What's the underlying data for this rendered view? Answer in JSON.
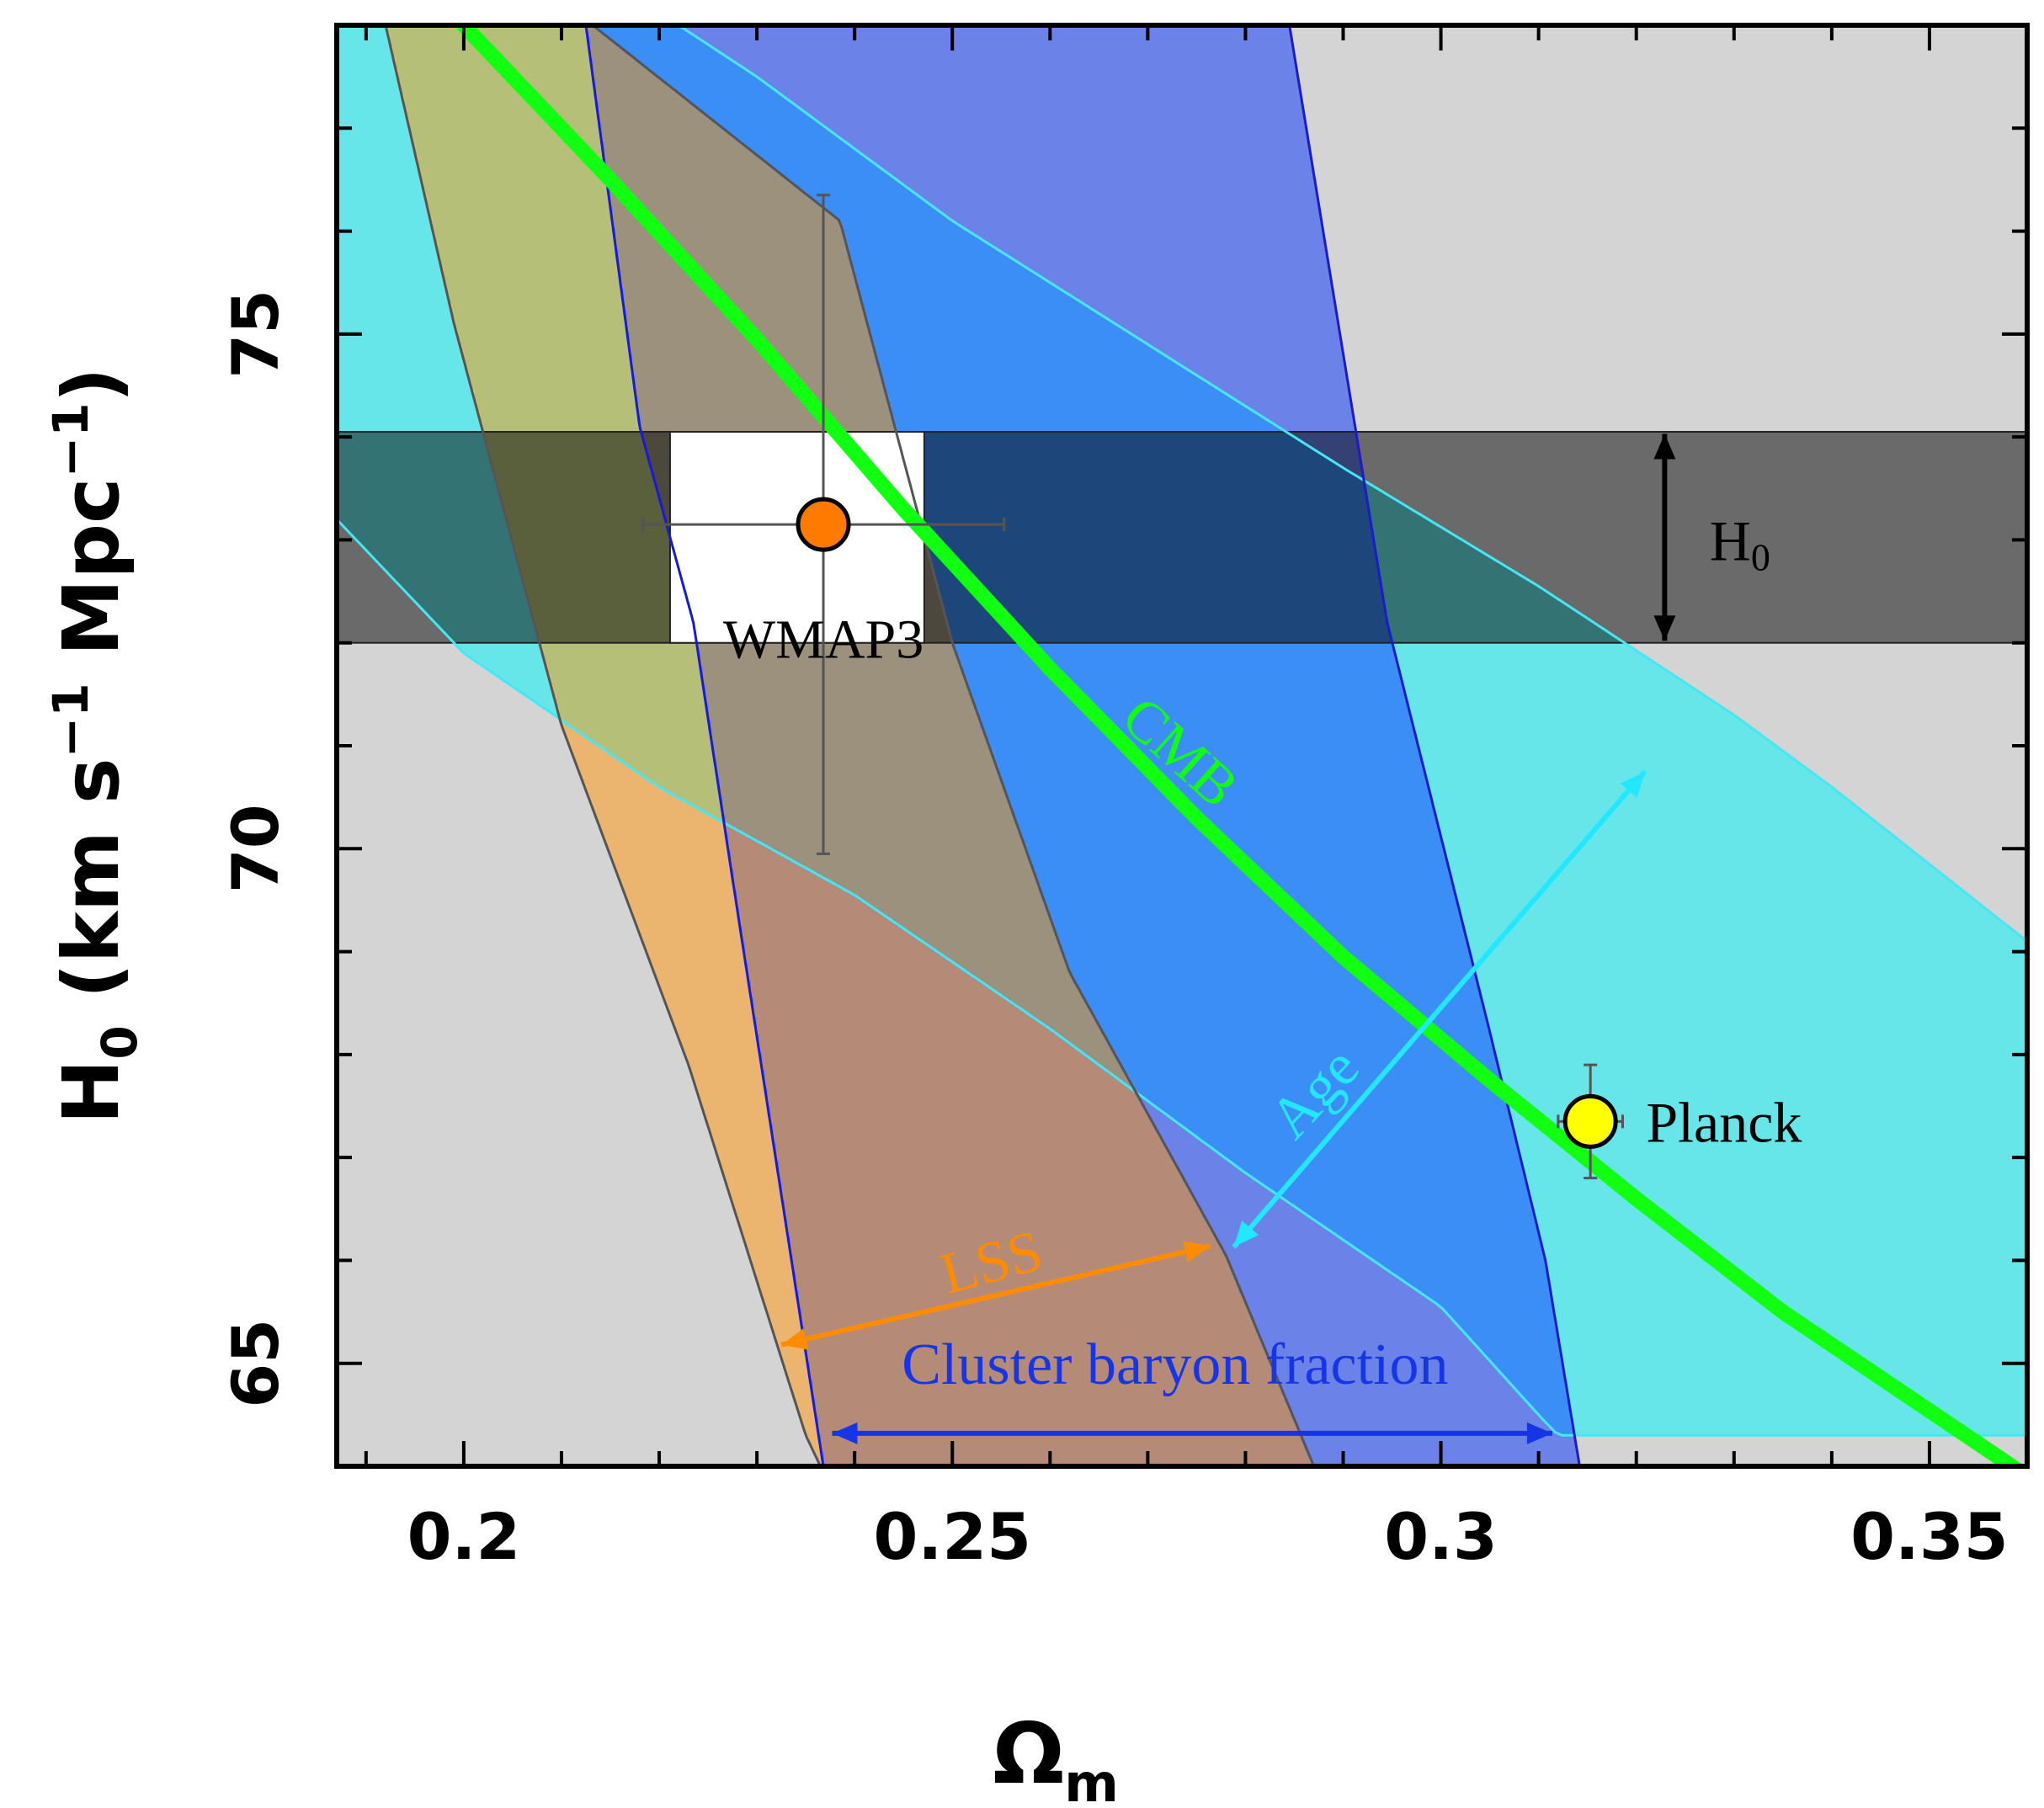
{
  "chart_data": {
    "type": "region",
    "xlabel": "Ω",
    "xlabel_sub": "m",
    "ylabel_main": "H",
    "ylabel_sub": "0",
    "ylabel_units_a": "(km s",
    "ylabel_units_sup1": "−1",
    "ylabel_units_b": " Mpc",
    "ylabel_units_sup2": "−1",
    "ylabel_units_c": ")",
    "xlim": [
      0.187,
      0.36
    ],
    "ylim": [
      64.0,
      78.0
    ],
    "xticks": [
      "0.2",
      "0.25",
      "0.3",
      "0.35"
    ],
    "xtick_values": [
      0.2,
      0.25,
      0.3,
      0.35
    ],
    "yticks": [
      "65",
      "70",
      "75"
    ],
    "ytick_values": [
      65,
      70,
      75
    ],
    "colors": {
      "background": "#d4d4d4",
      "age": "#66e6e8",
      "age_line": "#44e8f5",
      "lss": "#ebb56f",
      "lss_line": "#e8870e",
      "cluster": "#6b82e8",
      "cluster_line": "#1a1ad0",
      "cluster_age": "#3a8ef5",
      "lss_cluster": "#b58b78",
      "lss_age": "#b5bf78",
      "lss_cluster_age": "#9b917c",
      "h0_band": "#000000",
      "h0_alpha": 0.5,
      "cmb": "#11ff11",
      "wmap_marker": "#ff7a00",
      "planck_marker": "#ffff00",
      "errorbar": "#555555",
      "lss_arrow": "#ff8c00",
      "age_arrow": "#22e8ff",
      "cluster_arrow": "#1636e6",
      "h0_arrow": "#000000"
    },
    "regions": {
      "age": {
        "upper": [
          [
            0.187,
            78.0
          ],
          [
            0.222,
            78.0
          ],
          [
            0.23,
            77.5
          ],
          [
            0.25,
            76.1
          ],
          [
            0.27,
            74.9
          ],
          [
            0.29,
            73.7
          ],
          [
            0.31,
            72.55
          ],
          [
            0.33,
            71.3
          ],
          [
            0.34,
            70.6
          ],
          [
            0.36,
            69.1
          ]
        ],
        "lower": [
          [
            0.187,
            73.2
          ],
          [
            0.2,
            71.9
          ],
          [
            0.22,
            70.6
          ],
          [
            0.24,
            69.55
          ],
          [
            0.26,
            68.25
          ],
          [
            0.28,
            66.85
          ],
          [
            0.3,
            65.55
          ],
          [
            0.31,
            64.5
          ],
          [
            0.312,
            64.3
          ]
        ]
      },
      "lss": {
        "left": [
          [
            0.192,
            78.0
          ],
          [
            0.199,
            75.1
          ],
          [
            0.21,
            71.2
          ],
          [
            0.223,
            67.9
          ],
          [
            0.235,
            64.3
          ],
          [
            0.2365,
            64.0
          ]
        ],
        "right": [
          [
            0.2132,
            78.0
          ],
          [
            0.2385,
            76.1
          ],
          [
            0.25,
            72.0
          ],
          [
            0.262,
            68.8
          ],
          [
            0.278,
            66.05
          ],
          [
            0.29,
            63.9
          ],
          [
            0.287,
            64.0
          ]
        ]
      },
      "cluster": {
        "left": [
          [
            0.2125,
            78.0
          ],
          [
            0.218,
            74.1
          ],
          [
            0.2235,
            72.2
          ],
          [
            0.228,
            69.4
          ],
          [
            0.2368,
            64.0
          ]
        ],
        "right": [
          [
            0.2845,
            78.0
          ],
          [
            0.2945,
            72.2
          ],
          [
            0.3048,
            68.3
          ],
          [
            0.3107,
            66.0
          ],
          [
            0.3142,
            64.0
          ]
        ]
      },
      "h0_band": [
        72.0,
        74.05
      ]
    },
    "series": [
      {
        "name": "CMB",
        "type": "line",
        "x": [
          0.2,
          0.215,
          0.23,
          0.245,
          0.26,
          0.275,
          0.29,
          0.305,
          0.32,
          0.335,
          0.36
        ],
        "y": [
          78.0,
          76.5,
          74.95,
          73.3,
          71.75,
          70.3,
          68.95,
          67.75,
          66.6,
          65.5,
          63.9
        ]
      }
    ],
    "points": [
      {
        "name": "WMAP3",
        "x": 0.2368,
        "y": 73.15,
        "xerr": [
          0.0185,
          0.0185
        ],
        "yerr": [
          3.2,
          3.2
        ]
      },
      {
        "name": "Planck",
        "x": 0.3153,
        "y": 67.35,
        "xerr": [
          0.0033,
          0.0033
        ],
        "yerr": [
          0.55,
          0.55
        ]
      }
    ],
    "annotations": [
      {
        "text": "WMAP3",
        "x": 0.2368,
        "y": 72.0
      },
      {
        "text": "Planck",
        "x": 0.321,
        "y": 67.35
      },
      {
        "text": "H",
        "sub": "0",
        "x": 0.3275,
        "y": 73.0
      },
      {
        "text": "CMB",
        "x": 0.272,
        "y": 70.8,
        "angle": 42
      },
      {
        "text": "Age",
        "x": 0.2885,
        "y": 67.5,
        "angle": -47
      },
      {
        "text": "LSS",
        "x": 0.2545,
        "y": 65.8,
        "angle": -15
      },
      {
        "text": "Cluster baryon fraction",
        "x": 0.2728,
        "y": 64.8
      }
    ],
    "arrows": [
      {
        "name": "h0-arrow",
        "from": [
          0.3229,
          72.02
        ],
        "to": [
          0.3229,
          74.03
        ]
      },
      {
        "name": "age-arrow",
        "from": [
          0.2788,
          66.13
        ],
        "to": [
          0.3209,
          70.75
        ]
      },
      {
        "name": "lss-arrow",
        "from": [
          0.2325,
          65.18
        ],
        "to": [
          0.2764,
          66.14
        ]
      },
      {
        "name": "cluster-arrow",
        "from": [
          0.2377,
          64.32
        ],
        "to": [
          0.3114,
          64.32
        ]
      }
    ]
  }
}
